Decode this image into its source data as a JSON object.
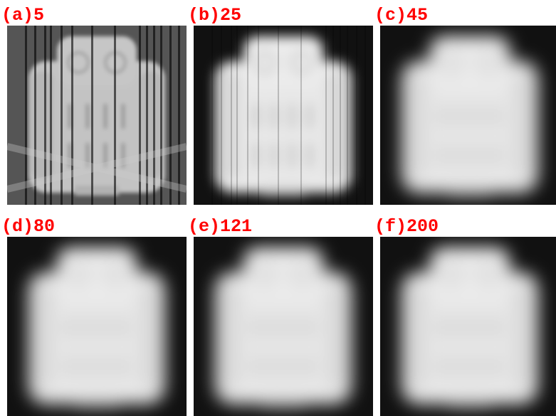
{
  "panels": [
    {
      "label": "(a)5"
    },
    {
      "label": "(b)25"
    },
    {
      "label": "(c)45"
    },
    {
      "label": "(d)80"
    },
    {
      "label": "(e)121"
    },
    {
      "label": "(f)200"
    }
  ]
}
